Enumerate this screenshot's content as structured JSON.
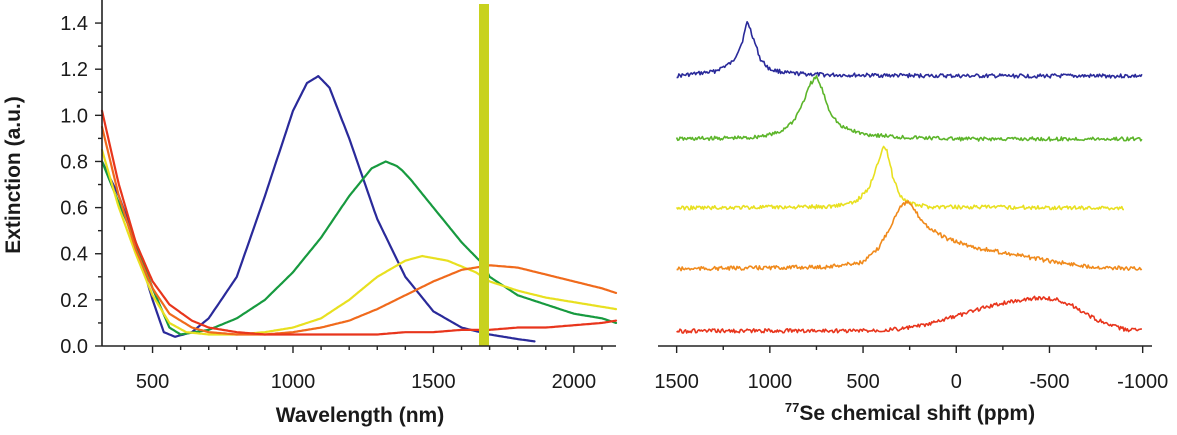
{
  "chart_data": [
    {
      "type": "line",
      "title": "",
      "xlabel": "Wavelength (nm)",
      "ylabel": "Extinction (a.u.)",
      "xlim": [
        320,
        2150
      ],
      "ylim": [
        0,
        1.5
      ],
      "x_ticks": [
        500,
        1000,
        1500,
        2000
      ],
      "x_tick_labels": [
        "500",
        "1000",
        "1500",
        "2000"
      ],
      "y_ticks": [
        0.0,
        0.2,
        0.4,
        0.6,
        0.8,
        1.0,
        1.2,
        1.4
      ],
      "y_tick_labels": [
        "0.0",
        "0.2",
        "0.4",
        "0.6",
        "0.8",
        "1.0",
        "1.2",
        "1.4"
      ],
      "grid": false,
      "legend": "none",
      "series": [
        {
          "color": "#2a2a9a",
          "x": [
            320,
            380,
            440,
            500,
            540,
            580,
            640,
            700,
            800,
            900,
            1000,
            1050,
            1090,
            1130,
            1200,
            1300,
            1400,
            1500,
            1600,
            1700,
            1800,
            1860
          ],
          "y": [
            0.8,
            0.65,
            0.45,
            0.2,
            0.06,
            0.04,
            0.06,
            0.12,
            0.3,
            0.65,
            1.02,
            1.14,
            1.17,
            1.12,
            0.9,
            0.55,
            0.3,
            0.15,
            0.08,
            0.05,
            0.03,
            0.02
          ]
        },
        {
          "color": "#179a3f",
          "x": [
            320,
            380,
            440,
            500,
            560,
            600,
            700,
            800,
            900,
            1000,
            1100,
            1200,
            1280,
            1330,
            1370,
            1390,
            1420,
            1500,
            1600,
            1680,
            1700,
            1800,
            1900,
            2000,
            2100,
            2150
          ],
          "y": [
            0.8,
            0.62,
            0.45,
            0.25,
            0.08,
            0.05,
            0.07,
            0.12,
            0.2,
            0.32,
            0.47,
            0.65,
            0.77,
            0.8,
            0.78,
            0.76,
            0.72,
            0.6,
            0.45,
            0.35,
            0.3,
            0.22,
            0.18,
            0.14,
            0.12,
            0.1
          ]
        },
        {
          "color": "#e8e020",
          "x": [
            320,
            380,
            440,
            500,
            560,
            620,
            700,
            800,
            900,
            1000,
            1100,
            1200,
            1300,
            1400,
            1460,
            1550,
            1650,
            1700,
            1800,
            1900,
            2000,
            2100,
            2150
          ],
          "y": [
            0.85,
            0.6,
            0.4,
            0.22,
            0.1,
            0.06,
            0.05,
            0.05,
            0.06,
            0.08,
            0.12,
            0.2,
            0.3,
            0.37,
            0.39,
            0.37,
            0.32,
            0.28,
            0.24,
            0.21,
            0.19,
            0.17,
            0.16
          ]
        },
        {
          "color": "#f06a1c",
          "x": [
            320,
            380,
            440,
            500,
            560,
            640,
            700,
            800,
            900,
            1000,
            1100,
            1200,
            1300,
            1400,
            1500,
            1600,
            1700,
            1800,
            1900,
            2000,
            2100,
            2150
          ],
          "y": [
            0.95,
            0.65,
            0.42,
            0.25,
            0.14,
            0.08,
            0.06,
            0.05,
            0.05,
            0.06,
            0.08,
            0.11,
            0.16,
            0.22,
            0.28,
            0.33,
            0.35,
            0.34,
            0.31,
            0.28,
            0.25,
            0.23
          ]
        },
        {
          "color": "#e8351c",
          "x": [
            320,
            380,
            440,
            500,
            560,
            640,
            700,
            800,
            900,
            1000,
            1100,
            1200,
            1300,
            1400,
            1500,
            1600,
            1700,
            1800,
            1900,
            2000,
            2100,
            2150
          ],
          "y": [
            1.02,
            0.7,
            0.45,
            0.28,
            0.18,
            0.11,
            0.08,
            0.06,
            0.05,
            0.05,
            0.05,
            0.05,
            0.05,
            0.06,
            0.06,
            0.07,
            0.07,
            0.08,
            0.08,
            0.09,
            0.1,
            0.11
          ]
        }
      ]
    },
    {
      "type": "line",
      "title": "",
      "xlabel": "77Se chemical shift (ppm)",
      "xlabel_sup": "77",
      "xlabel_main": "Se chemical shift (ppm)",
      "xlim": [
        1600,
        -1050
      ],
      "x_reversed": true,
      "x_ticks": [
        1500,
        1000,
        500,
        0,
        -500,
        -1000
      ],
      "x_tick_labels": [
        "1500",
        "1000",
        "500",
        "0",
        "-500",
        "-1000"
      ],
      "y_axis": "none",
      "grid": false,
      "legend": "none",
      "series": [
        {
          "color": "#2a2a9a",
          "offset": 4,
          "x": [
            1500,
            1300,
            1200,
            1150,
            1120,
            1090,
            1050,
            1000,
            900,
            700,
            0,
            -1000
          ],
          "y": [
            0,
            0.08,
            0.25,
            0.6,
            1.0,
            0.7,
            0.3,
            0.12,
            0.05,
            0.02,
            0,
            0
          ]
        },
        {
          "color": "#5cb52a",
          "offset": 3,
          "x": [
            1500,
            1100,
            950,
            870,
            820,
            780,
            750,
            720,
            680,
            620,
            500,
            300,
            0,
            -1000
          ],
          "y": [
            0,
            0.02,
            0.1,
            0.3,
            0.6,
            0.9,
            1.0,
            0.8,
            0.45,
            0.2,
            0.08,
            0.03,
            0,
            0
          ]
        },
        {
          "color": "#e8e020",
          "offset": 2,
          "x": [
            1500,
            700,
            550,
            470,
            420,
            390,
            370,
            340,
            300,
            250,
            150,
            -900
          ],
          "y": [
            0,
            0.02,
            0.08,
            0.3,
            0.75,
            1.0,
            0.9,
            0.5,
            0.2,
            0.07,
            0.02,
            0
          ]
        },
        {
          "color": "#f08a1c",
          "offset": 1,
          "x": [
            1500,
            700,
            500,
            420,
            350,
            300,
            260,
            230,
            200,
            150,
            50,
            -100,
            -300,
            -500,
            -700,
            -900,
            -1000
          ],
          "y": [
            0,
            0.03,
            0.1,
            0.3,
            0.65,
            0.95,
            1.0,
            0.9,
            0.78,
            0.62,
            0.45,
            0.32,
            0.22,
            0.12,
            0.04,
            0.01,
            0
          ]
        },
        {
          "color": "#e8351c",
          "offset": 0,
          "x": [
            1500,
            500,
            300,
            150,
            0,
            -150,
            -300,
            -420,
            -480,
            -540,
            -620,
            -700,
            -800,
            -900,
            -1000
          ],
          "y": [
            0,
            0.01,
            0.06,
            0.2,
            0.45,
            0.72,
            0.9,
            1.0,
            1.0,
            0.95,
            0.78,
            0.5,
            0.22,
            0.05,
            0
          ]
        }
      ]
    }
  ],
  "colors": {
    "axis": "#222222",
    "artifact_band": "#c8d21e"
  }
}
